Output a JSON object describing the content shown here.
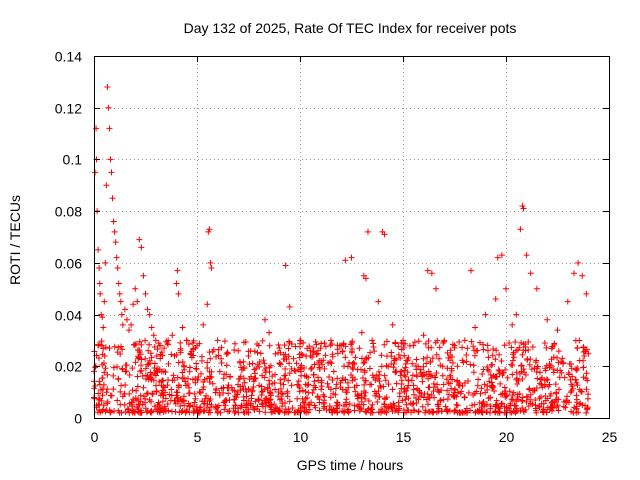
{
  "chart_data": {
    "type": "scatter",
    "title": "Day 132 of 2025, Rate Of TEC Index for receiver pots",
    "xlabel": "GPS time / hours",
    "ylabel": "ROTI / TECUs",
    "xlim": [
      0,
      25
    ],
    "ylim": [
      0,
      0.14
    ],
    "xticks": [
      0,
      5,
      10,
      15,
      20,
      25
    ],
    "xtick_labels": [
      "0",
      "5",
      "10",
      "15",
      "20",
      "25"
    ],
    "yticks": [
      0,
      0.02,
      0.04,
      0.06,
      0.08,
      0.1,
      0.12,
      0.14
    ],
    "ytick_labels": [
      "0",
      "0.02",
      "0.04",
      "0.06",
      "0.08",
      "0.1",
      "0.12",
      "0.14"
    ],
    "grid": true,
    "marker": "plus",
    "color": "#ff0000",
    "series": [
      {
        "name": "ROTI",
        "x": [
          0.05,
          0.1,
          0.12,
          0.15,
          0.2,
          0.25,
          0.28,
          0.3,
          0.35,
          0.4,
          0.45,
          0.5,
          0.55,
          0.6,
          0.65,
          0.7,
          0.75,
          0.8,
          0.85,
          0.9,
          0.95,
          1.0,
          1.05,
          1.1,
          1.15,
          1.2,
          1.25,
          1.3,
          1.35,
          1.4,
          1.5,
          1.6,
          1.7,
          1.8,
          1.9,
          2.0,
          2.1,
          2.2,
          2.3,
          2.4,
          2.5,
          2.6,
          2.7,
          2.8,
          2.9,
          3.0,
          3.2,
          3.4,
          3.6,
          3.8,
          4.0,
          4.05,
          4.1,
          4.3,
          4.5,
          4.8,
          5.0,
          5.3,
          5.5,
          5.55,
          5.6,
          5.65,
          5.7,
          6.0,
          6.5,
          7.0,
          7.5,
          8.0,
          8.3,
          8.5,
          9.0,
          9.3,
          9.5,
          10.0,
          10.5,
          11.0,
          11.5,
          12.0,
          12.2,
          12.5,
          13.0,
          13.1,
          13.2,
          13.3,
          13.5,
          13.8,
          14.0,
          14.1,
          14.5,
          15.0,
          15.5,
          16.0,
          16.2,
          16.4,
          16.6,
          17.0,
          17.5,
          18.0,
          18.3,
          18.5,
          19.0,
          19.5,
          19.6,
          19.8,
          20.0,
          20.3,
          20.5,
          20.7,
          20.8,
          20.85,
          21.0,
          21.2,
          21.5,
          22.0,
          22.5,
          23.0,
          23.3,
          23.5,
          23.7,
          23.9
        ],
        "y": [
          0.095,
          0.112,
          0.1,
          0.08,
          0.065,
          0.058,
          0.052,
          0.048,
          0.04,
          0.039,
          0.035,
          0.045,
          0.06,
          0.09,
          0.128,
          0.12,
          0.112,
          0.1,
          0.095,
          0.085,
          0.076,
          0.072,
          0.068,
          0.062,
          0.058,
          0.052,
          0.048,
          0.045,
          0.04,
          0.036,
          0.042,
          0.038,
          0.034,
          0.036,
          0.044,
          0.05,
          0.045,
          0.069,
          0.066,
          0.055,
          0.048,
          0.042,
          0.04,
          0.035,
          0.032,
          0.03,
          0.028,
          0.027,
          0.03,
          0.032,
          0.052,
          0.057,
          0.048,
          0.035,
          0.03,
          0.029,
          0.028,
          0.036,
          0.044,
          0.072,
          0.073,
          0.06,
          0.058,
          0.03,
          0.025,
          0.026,
          0.024,
          0.028,
          0.038,
          0.033,
          0.027,
          0.059,
          0.043,
          0.03,
          0.026,
          0.027,
          0.03,
          0.028,
          0.061,
          0.062,
          0.033,
          0.055,
          0.054,
          0.072,
          0.03,
          0.045,
          0.072,
          0.071,
          0.036,
          0.03,
          0.028,
          0.032,
          0.057,
          0.056,
          0.05,
          0.03,
          0.028,
          0.03,
          0.057,
          0.035,
          0.04,
          0.046,
          0.062,
          0.063,
          0.05,
          0.036,
          0.04,
          0.073,
          0.082,
          0.081,
          0.063,
          0.056,
          0.05,
          0.038,
          0.034,
          0.045,
          0.056,
          0.06,
          0.055,
          0.048
        ],
        "baseline_min": 0.002,
        "baseline_max": 0.03
      }
    ]
  }
}
